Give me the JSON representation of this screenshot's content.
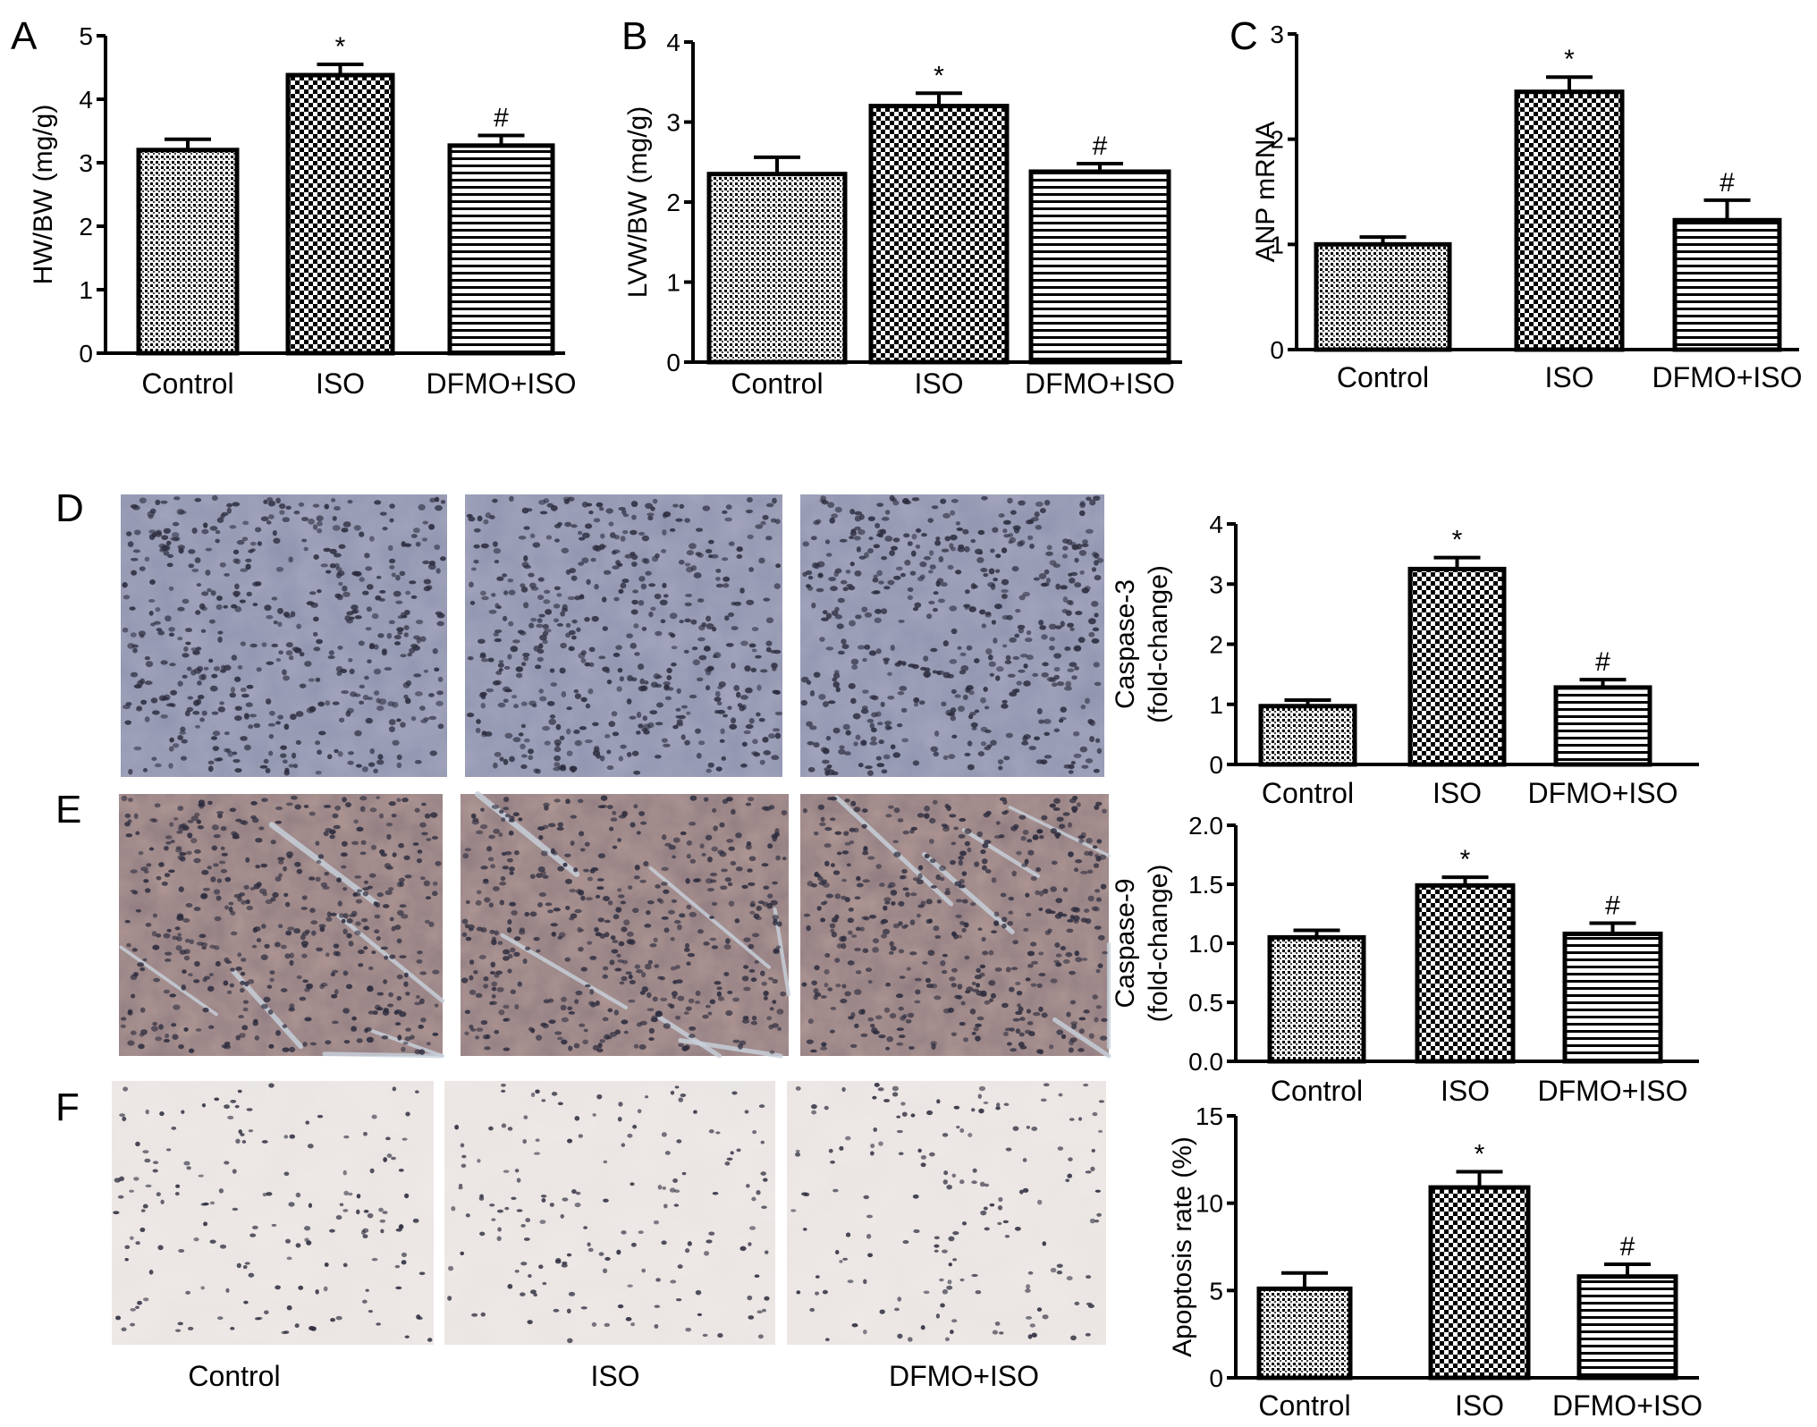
{
  "figure": {
    "panel_labels": [
      "A",
      "B",
      "C",
      "D",
      "E",
      "F"
    ],
    "micrograph_groups": [
      "Control",
      "ISO",
      "DFMO+ISO"
    ]
  },
  "colors": {
    "tissue_brown_bg": "#8e7a80",
    "tissue_blue_bg": "#8f93ad",
    "tunel_bg": "#e9e5e2",
    "nucleus": "#2b2b3d"
  },
  "chart_data": [
    {
      "id": "A",
      "type": "bar",
      "categories": [
        "Control",
        "ISO",
        "DFMO+ISO"
      ],
      "values": [
        3.2,
        4.38,
        3.27
      ],
      "errors": [
        0.17,
        0.17,
        0.16
      ],
      "markers": [
        "",
        "*",
        "#"
      ],
      "ylabel": "HW/BW (mg/g)",
      "ylim": [
        0,
        5
      ],
      "yticks": [
        "0",
        "1",
        "2",
        "3",
        "4",
        "5"
      ],
      "patterns": [
        "dots",
        "checker",
        "hlines"
      ]
    },
    {
      "id": "B",
      "type": "bar",
      "categories": [
        "Control",
        "ISO",
        "DFMO+ISO"
      ],
      "values": [
        2.35,
        3.2,
        2.38
      ],
      "errors": [
        0.21,
        0.16,
        0.1
      ],
      "markers": [
        "",
        "*",
        "#"
      ],
      "ylabel": "LVW/BW (mg/g)",
      "ylim": [
        0,
        4
      ],
      "yticks": [
        "0",
        "1",
        "2",
        "3",
        "4"
      ],
      "patterns": [
        "dots",
        "checker",
        "hlines"
      ]
    },
    {
      "id": "C",
      "type": "bar",
      "categories": [
        "Control",
        "ISO",
        "DFMO+ISO"
      ],
      "values": [
        1.0,
        2.45,
        1.23
      ],
      "errors": [
        0.07,
        0.14,
        0.19
      ],
      "markers": [
        "",
        "*",
        "#"
      ],
      "ylabel": "ANP mRNA",
      "ylim": [
        0,
        3
      ],
      "yticks": [
        "0",
        "1",
        "2",
        "3"
      ],
      "patterns": [
        "dots",
        "checker",
        "hlines"
      ]
    },
    {
      "id": "D",
      "type": "bar",
      "categories": [
        "Control",
        "ISO",
        "DFMO+ISO"
      ],
      "values": [
        0.97,
        3.25,
        1.28
      ],
      "errors": [
        0.1,
        0.19,
        0.13
      ],
      "markers": [
        "",
        "*",
        "#"
      ],
      "ylabel": "Caspase-3",
      "ylabel2": "(fold-change)",
      "ylim": [
        0,
        4
      ],
      "yticks": [
        "0",
        "1",
        "2",
        "3",
        "4"
      ],
      "patterns": [
        "dots",
        "checker",
        "hlines"
      ]
    },
    {
      "id": "E",
      "type": "bar",
      "categories": [
        "Control",
        "ISO",
        "DFMO+ISO"
      ],
      "values": [
        1.05,
        1.49,
        1.08
      ],
      "errors": [
        0.06,
        0.07,
        0.09
      ],
      "markers": [
        "",
        "*",
        "#"
      ],
      "ylabel": "Caspase-9",
      "ylabel2": "(fold-change)",
      "ylim": [
        0,
        2
      ],
      "yticks": [
        "0.0",
        "0.5",
        "1.0",
        "1.5",
        "2.0"
      ],
      "patterns": [
        "dots",
        "checker",
        "hlines"
      ]
    },
    {
      "id": "F",
      "type": "bar",
      "categories": [
        "Control",
        "ISO",
        "DFMO+ISO"
      ],
      "values": [
        5.1,
        10.9,
        5.8
      ],
      "errors": [
        0.9,
        0.9,
        0.7
      ],
      "markers": [
        "",
        "*",
        "#"
      ],
      "ylabel": "Apoptosis rate (%)",
      "ylim": [
        0,
        15
      ],
      "yticks": [
        "0",
        "5",
        "10",
        "15"
      ],
      "patterns": [
        "dots",
        "checker",
        "hlines"
      ]
    }
  ]
}
